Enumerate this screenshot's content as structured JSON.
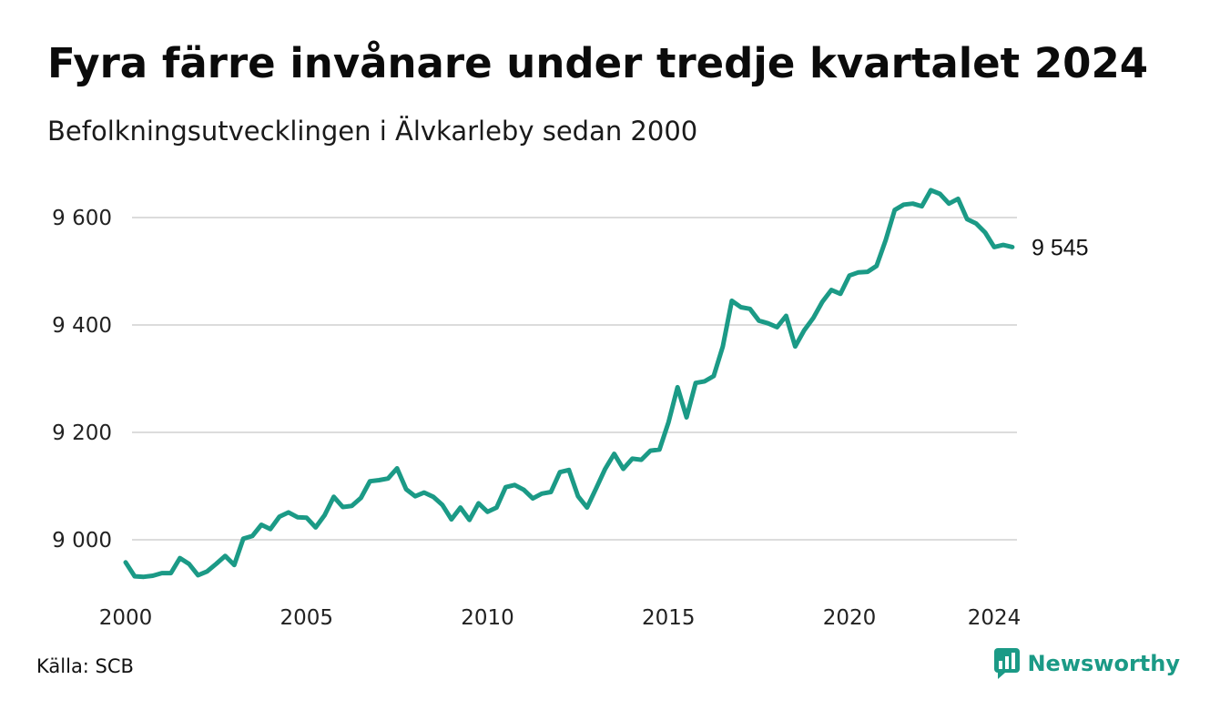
{
  "header": {
    "title": "Fyra färre invånare under tredje kvartalet 2024",
    "subtitle": "Befolkningsutvecklingen i Älvkarleby sedan 2000"
  },
  "footer": {
    "source": "Källa: SCB",
    "brand": "Newsworthy",
    "brand_icon": "newsworthy-logo-icon"
  },
  "colors": {
    "line": "#1b9a86",
    "grid": "#dcdcdc",
    "brand": "#1b9a86"
  },
  "chart_data": {
    "type": "line",
    "xlim": [
      2000,
      2024.75
    ],
    "ylim": [
      8910,
      9680
    ],
    "x_ticks": [
      2000,
      2005,
      2010,
      2015,
      2020,
      2024
    ],
    "x_tick_labels": [
      "2000",
      "2005",
      "2010",
      "2015",
      "2020",
      "2024"
    ],
    "y_ticks": [
      9000,
      9200,
      9400,
      9600
    ],
    "y_tick_labels": [
      "9 000",
      "9 200",
      "9 400",
      "9 600"
    ],
    "grid": true,
    "end_label": "9 545",
    "series": [
      {
        "x": [
          2000.0,
          2000.25,
          2000.5,
          2000.75,
          2001.0,
          2001.25,
          2001.5,
          2001.75,
          2002.0,
          2002.25,
          2002.5,
          2002.75,
          2003.0,
          2003.25,
          2003.5,
          2003.75,
          2004.0,
          2004.25,
          2004.5,
          2004.75,
          2005.0,
          2005.25,
          2005.5,
          2005.75,
          2006.0,
          2006.25,
          2006.5,
          2006.75,
          2007.0,
          2007.25,
          2007.5,
          2007.75,
          2008.0,
          2008.25,
          2008.5,
          2008.75,
          2009.0,
          2009.25,
          2009.5,
          2009.75,
          2010.0,
          2010.25,
          2010.5,
          2010.75,
          2011.0,
          2011.25,
          2011.5,
          2011.75,
          2012.0,
          2012.25,
          2012.5,
          2012.75,
          2013.0,
          2013.25,
          2013.5,
          2013.75,
          2014.0,
          2014.25,
          2014.5,
          2014.75,
          2015.0,
          2015.25,
          2015.5,
          2015.75,
          2016.0,
          2016.25,
          2016.5,
          2016.75,
          2017.0,
          2017.25,
          2017.5,
          2017.75,
          2018.0,
          2018.25,
          2018.5,
          2018.75,
          2019.0,
          2019.25,
          2019.5,
          2019.75,
          2020.0,
          2020.25,
          2020.5,
          2020.75,
          2021.0,
          2021.25,
          2021.5,
          2021.75,
          2022.0,
          2022.25,
          2022.5,
          2022.75,
          2023.0,
          2023.25,
          2023.5,
          2023.75,
          2024.0,
          2024.25,
          2024.5
        ],
        "values": [
          8958,
          8932,
          8931,
          8933,
          8938,
          8938,
          8966,
          8955,
          8934,
          8941,
          8955,
          8970,
          8953,
          9002,
          9007,
          9028,
          9020,
          9043,
          9051,
          9042,
          9041,
          9023,
          9046,
          9080,
          9061,
          9063,
          9078,
          9109,
          9111,
          9114,
          9133,
          9094,
          9081,
          9088,
          9080,
          9065,
          9038,
          9060,
          9037,
          9068,
          9052,
          9060,
          9098,
          9102,
          9093,
          9077,
          9086,
          9089,
          9126,
          9130,
          9081,
          9060,
          9096,
          9132,
          9160,
          9132,
          9151,
          9149,
          9166,
          9168,
          9219,
          9284,
          9228,
          9292,
          9295,
          9305,
          9360,
          9445,
          9433,
          9430,
          9408,
          9403,
          9396,
          9417,
          9360,
          9390,
          9413,
          9443,
          9465,
          9458,
          9492,
          9498,
          9499,
          9510,
          9558,
          9614,
          9624,
          9626,
          9621,
          9651,
          9644,
          9626,
          9635,
          9597,
          9589,
          9572,
          9545,
          9549,
          9545
        ]
      }
    ]
  }
}
